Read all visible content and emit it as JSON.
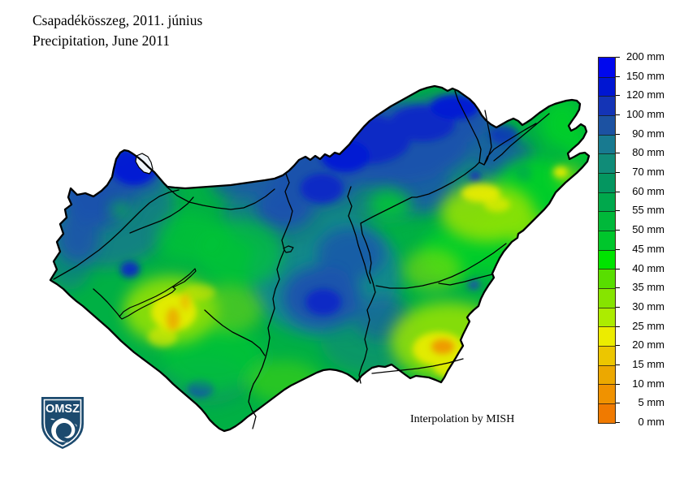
{
  "header": {
    "title_hu": "Csapadékösszeg, 2011. június",
    "title_en": "Precipitation, June 2011"
  },
  "attribution": "Interpolation by MISH",
  "logo": {
    "text": "OMSZ",
    "shield_color": "#1c4a6e"
  },
  "map": {
    "country": "Hungary precipitation field",
    "border_color": "#000000",
    "river_color": "#000000",
    "background": "#ffffff"
  },
  "legend": {
    "unit": "mm",
    "values": [
      200,
      150,
      120,
      100,
      90,
      80,
      70,
      60,
      55,
      50,
      45,
      40,
      35,
      30,
      25,
      20,
      15,
      10,
      5,
      0
    ],
    "labels": [
      "200 mm",
      "150 mm",
      "120 mm",
      "100 mm",
      "90 mm",
      "80 mm",
      "70 mm",
      "60 mm",
      "55 mm",
      "50 mm",
      "45 mm",
      "40 mm",
      "35 mm",
      "30 mm",
      "25 mm",
      "20 mm",
      "15 mm",
      "10 mm",
      "5 mm",
      "0 mm"
    ],
    "band_colors": [
      "#0008ee",
      "#0016d2",
      "#1434b6",
      "#1c52a2",
      "#187a90",
      "#108c78",
      "#049660",
      "#00a84c",
      "#00b83a",
      "#00c62c",
      "#00e400",
      "#58de00",
      "#86e400",
      "#acec00",
      "#ecec00",
      "#ecc600",
      "#eca800",
      "#f09200",
      "#f07a00"
    ]
  }
}
